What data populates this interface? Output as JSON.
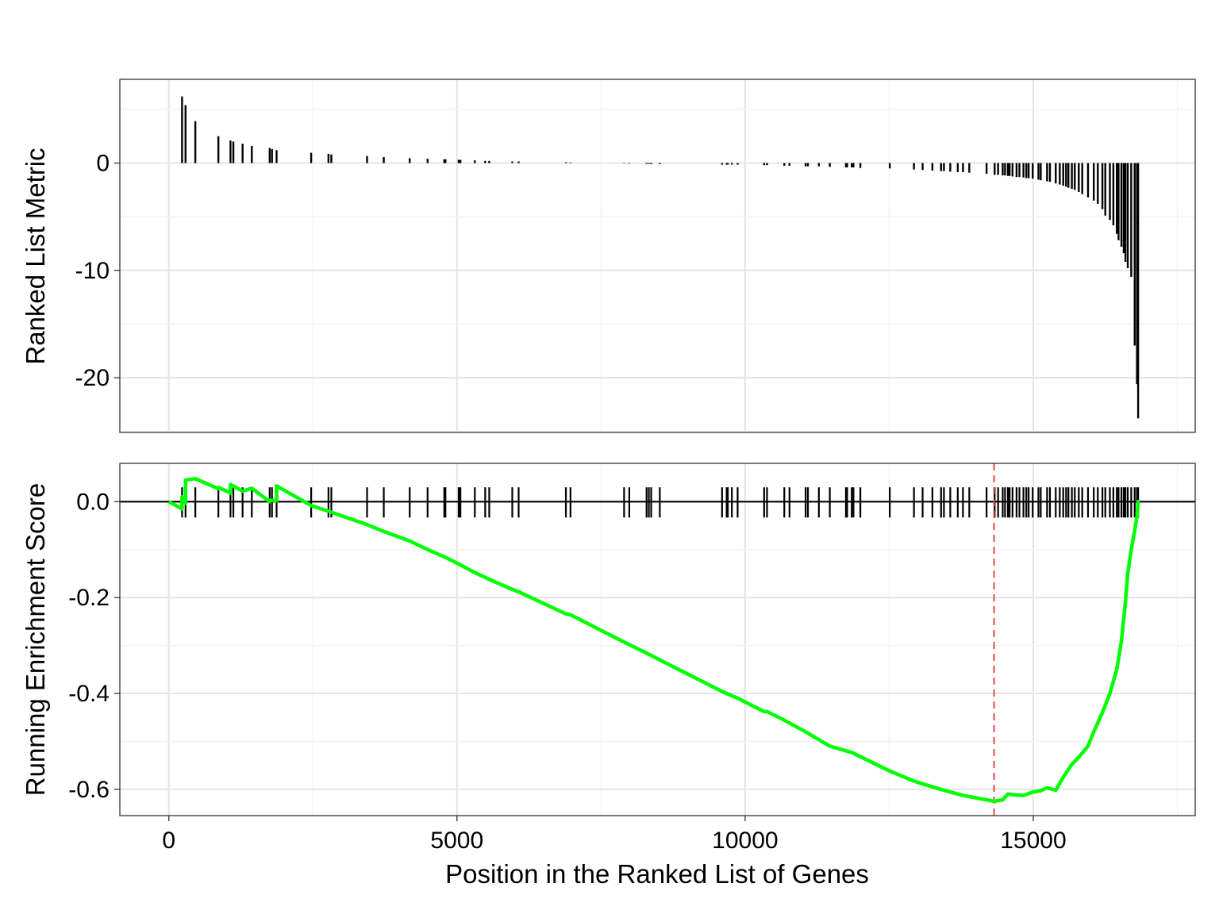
{
  "chart_data": [
    {
      "type": "bar",
      "panel": "ranked-list-metric",
      "ylabel": "Ranked List Metric",
      "ylim": [
        -25.1,
        7.8
      ],
      "yticks": [
        0,
        -10,
        -20
      ],
      "ytick_labels": [
        "0",
        "-10",
        "-20"
      ],
      "xlim": [
        -850,
        17810
      ],
      "xticks": [
        0,
        5000,
        10000,
        15000
      ],
      "grid": true,
      "gene_positions": [
        230,
        290,
        460,
        860,
        1070,
        1120,
        1280,
        1440,
        1750,
        1790,
        1870,
        2470,
        2770,
        2820,
        3440,
        3730,
        4180,
        4490,
        4780,
        4800,
        5030,
        5060,
        5310,
        5490,
        5560,
        5960,
        6070,
        6890,
        6970,
        7900,
        7990,
        8290,
        8330,
        8370,
        8520,
        9600,
        9680,
        9700,
        9770,
        9870,
        10330,
        10380,
        10680,
        10770,
        11050,
        11090,
        11280,
        11470,
        11750,
        11770,
        11850,
        11880,
        12000,
        12510,
        12930,
        13080,
        13250,
        13400,
        13450,
        13560,
        13690,
        13780,
        13890,
        14190,
        14330,
        14390,
        14470,
        14510,
        14560,
        14590,
        14640,
        14710,
        14760,
        14830,
        14880,
        14920,
        14990,
        15090,
        15130,
        15240,
        15290,
        15390,
        15460,
        15520,
        15570,
        15610,
        15670,
        15720,
        15790,
        15850,
        15950,
        16050,
        16120,
        16200,
        16250,
        16330,
        16390,
        16450,
        16480,
        16530,
        16570,
        16600,
        16640,
        16700,
        16760,
        16800,
        16820
      ],
      "values": [
        6.2,
        5.4,
        3.9,
        2.5,
        2.1,
        2.0,
        1.8,
        1.6,
        1.4,
        1.3,
        1.2,
        0.95,
        0.85,
        0.8,
        0.65,
        0.55,
        0.45,
        0.4,
        0.35,
        0.35,
        0.3,
        0.3,
        0.25,
        0.2,
        0.2,
        0.15,
        0.15,
        0.08,
        0.05,
        -0.03,
        -0.05,
        -0.08,
        -0.08,
        -0.1,
        -0.1,
        -0.15,
        -0.15,
        -0.15,
        -0.15,
        -0.15,
        -0.2,
        -0.2,
        -0.25,
        -0.25,
        -0.3,
        -0.3,
        -0.3,
        -0.35,
        -0.4,
        -0.4,
        -0.4,
        -0.4,
        -0.45,
        -0.5,
        -0.6,
        -0.65,
        -0.7,
        -0.75,
        -0.75,
        -0.8,
        -0.85,
        -0.85,
        -0.9,
        -1.0,
        -1.1,
        -1.1,
        -1.15,
        -1.15,
        -1.2,
        -1.2,
        -1.25,
        -1.3,
        -1.3,
        -1.35,
        -1.4,
        -1.4,
        -1.45,
        -1.55,
        -1.6,
        -1.7,
        -1.75,
        -1.9,
        -2.0,
        -2.1,
        -2.2,
        -2.3,
        -2.4,
        -2.5,
        -2.7,
        -2.9,
        -3.2,
        -3.5,
        -3.8,
        -4.3,
        -4.9,
        -5.3,
        -5.8,
        -6.6,
        -7.2,
        -7.8,
        -8.4,
        -9.2,
        -9.8,
        -10.6,
        -17.0,
        -20.6,
        -23.8
      ]
    },
    {
      "type": "line",
      "panel": "running-enrichment-score",
      "xlabel": "Position in the Ranked List of Genes",
      "ylabel": "Running Enrichment Score",
      "xlim": [
        -850,
        17810
      ],
      "ylim": [
        -0.655,
        0.08
      ],
      "xticks": [
        0,
        5000,
        10000,
        15000
      ],
      "xtick_labels": [
        "0",
        "5000",
        "10000",
        "15000"
      ],
      "yticks": [
        0.0,
        -0.2,
        -0.4,
        -0.6
      ],
      "ytick_labels": [
        "0.0",
        "-0.2",
        "-0.4",
        "-0.6"
      ],
      "grid": true,
      "line_color": "#00ff00",
      "zero_line_color": "#000000",
      "peak_marker": {
        "x": 14320,
        "color": "#e34a4a",
        "style": "dashed"
      },
      "series": [
        {
          "x": [
            0,
            230,
            230,
            290,
            290,
            460,
            860,
            860,
            1070,
            1070,
            1280,
            1440,
            1750,
            1750,
            1870,
            1870,
            2470,
            2770,
            3440,
            3730,
            4180,
            4490,
            4780,
            5030,
            5310,
            5560,
            5960,
            6070,
            6890,
            6970,
            7900,
            8290,
            8520,
            9600,
            9870,
            10330,
            10380,
            10680,
            11050,
            11470,
            11750,
            11850,
            12000,
            12510,
            12930,
            13250,
            13450,
            13780,
            14190,
            14320,
            14470,
            14560,
            14710,
            14830,
            14990,
            15130,
            15240,
            15390,
            15520,
            15670,
            15790,
            15950,
            16050,
            16200,
            16330,
            16450,
            16530,
            16600,
            16640,
            16700,
            16760,
            16800,
            16820,
            16850
          ],
          "y": [
            0.0,
            -0.015,
            0.01,
            -0.003,
            0.045,
            0.048,
            0.027,
            0.03,
            0.018,
            0.036,
            0.022,
            0.028,
            0.0,
            0.003,
            0.002,
            0.033,
            -0.008,
            -0.02,
            -0.048,
            -0.062,
            -0.082,
            -0.1,
            -0.115,
            -0.13,
            -0.148,
            -0.162,
            -0.183,
            -0.188,
            -0.234,
            -0.236,
            -0.293,
            -0.316,
            -0.33,
            -0.396,
            -0.41,
            -0.438,
            -0.438,
            -0.456,
            -0.48,
            -0.51,
            -0.52,
            -0.523,
            -0.532,
            -0.562,
            -0.583,
            -0.595,
            -0.602,
            -0.613,
            -0.622,
            -0.625,
            -0.622,
            -0.61,
            -0.612,
            -0.613,
            -0.606,
            -0.603,
            -0.597,
            -0.602,
            -0.575,
            -0.548,
            -0.533,
            -0.51,
            -0.48,
            -0.44,
            -0.4,
            -0.35,
            -0.29,
            -0.21,
            -0.15,
            -0.1,
            -0.06,
            -0.03,
            0.0,
            0.0
          ]
        }
      ]
    }
  ]
}
